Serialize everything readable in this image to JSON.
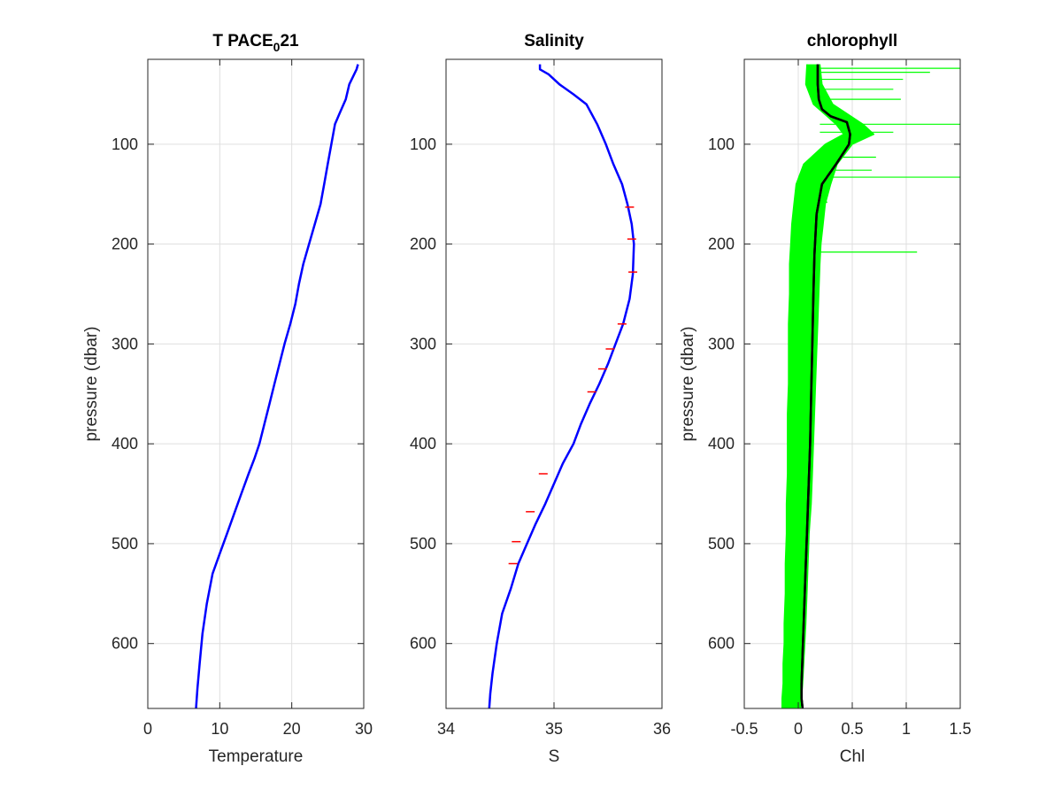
{
  "chart_data": [
    {
      "type": "line",
      "title": "T PACE",
      "title_subscript": "0",
      "title_suffix": "21",
      "xlabel": "Temperature",
      "ylabel": "pressure (dbar)",
      "xlim": [
        0,
        30
      ],
      "ylim": [
        15,
        665
      ],
      "y_reversed": true,
      "grid": true,
      "xticks": [
        0,
        10,
        20,
        30
      ],
      "yticks": [
        100,
        200,
        300,
        400,
        500,
        600
      ],
      "series": [
        {
          "color": "#0000ff",
          "x": [
            29.2,
            29.0,
            28.0,
            27.5,
            26.6,
            26.0,
            25.5,
            25.0,
            24.5,
            24.0,
            23.2,
            22.4,
            21.6,
            21.0,
            20.5,
            19.8,
            19.0,
            18.3,
            17.6,
            16.9,
            16.2,
            15.5,
            14.8,
            14.0,
            13.0,
            12.0,
            11.0,
            10.0,
            9.0,
            8.2,
            7.6,
            7.2,
            6.9,
            6.7
          ],
          "y": [
            20,
            25,
            40,
            55,
            70,
            80,
            100,
            120,
            140,
            160,
            180,
            200,
            220,
            240,
            260,
            280,
            300,
            320,
            340,
            360,
            380,
            400,
            415,
            430,
            450,
            470,
            490,
            510,
            530,
            560,
            590,
            620,
            645,
            665
          ]
        }
      ]
    },
    {
      "type": "line",
      "title": "Salinity",
      "xlabel": "S",
      "xlim": [
        34,
        36
      ],
      "ylim": [
        15,
        665
      ],
      "y_reversed": true,
      "grid": true,
      "xticks": [
        34,
        35,
        36
      ],
      "yticks": [
        100,
        200,
        300,
        400,
        500,
        600
      ],
      "series": [
        {
          "color": "#0000ff",
          "x": [
            34.87,
            34.87,
            34.95,
            35.05,
            35.18,
            35.3,
            35.4,
            35.48,
            35.55,
            35.63,
            35.68,
            35.72,
            35.74,
            35.73,
            35.7,
            35.64,
            35.57,
            35.5,
            35.42,
            35.33,
            35.25,
            35.18,
            35.08,
            35.0,
            34.92,
            34.83,
            34.75,
            34.67,
            34.6,
            34.52,
            34.47,
            34.43,
            34.41,
            34.4
          ],
          "y": [
            20,
            25,
            30,
            40,
            50,
            60,
            80,
            100,
            120,
            140,
            160,
            180,
            200,
            230,
            255,
            280,
            300,
            320,
            340,
            360,
            380,
            400,
            420,
            440,
            460,
            480,
            500,
            520,
            545,
            570,
            600,
            630,
            650,
            665
          ]
        },
        {
          "color": "#ff0000",
          "x": [
            35.7,
            35.72,
            35.73,
            35.63,
            35.52,
            35.45,
            35.35,
            34.9,
            34.78,
            34.65,
            34.62
          ],
          "y": [
            163,
            195,
            228,
            280,
            305,
            325,
            348,
            430,
            468,
            498,
            520
          ]
        }
      ]
    },
    {
      "type": "line",
      "title": "chlorophyll",
      "xlabel": "Chl",
      "ylabel": "pressure (dbar)",
      "xlim": [
        -0.5,
        1.5
      ],
      "ylim": [
        15,
        665
      ],
      "y_reversed": true,
      "grid": true,
      "xticks": [
        -0.5,
        0,
        0.5,
        1,
        1.5
      ],
      "xticklabels": [
        "-0.5",
        "0",
        "0.5",
        "1",
        "1.5"
      ],
      "yticks": [
        100,
        200,
        300,
        400,
        500,
        600
      ],
      "series": [
        {
          "color": "#00ff00",
          "x": [
            0.2,
            0.22,
            0.32,
            0.6,
            0.7,
            0.5,
            0.36,
            0.3,
            0.25,
            0.23,
            0.21,
            0.2,
            0.19,
            0.18,
            0.17,
            0.16,
            0.15,
            0.14,
            0.13,
            0.12,
            0.1,
            0.09,
            0.08,
            0.07,
            0.06,
            0.05,
            0.04,
            0.03,
            0.02
          ],
          "y": [
            20,
            40,
            60,
            80,
            90,
            100,
            120,
            140,
            160,
            180,
            200,
            220,
            250,
            280,
            310,
            340,
            370,
            400,
            430,
            460,
            490,
            520,
            550,
            580,
            600,
            620,
            640,
            655,
            665
          ]
        },
        {
          "color": "#00ff00",
          "x": [
            0.08,
            0.07,
            0.14,
            0.35,
            0.42,
            0.25,
            0.05,
            -0.02,
            -0.04,
            -0.06,
            -0.07,
            -0.08,
            -0.08,
            -0.09,
            -0.09,
            -0.09,
            -0.1,
            -0.1,
            -0.1,
            -0.11,
            -0.11,
            -0.12,
            -0.12,
            -0.13,
            -0.13,
            -0.14,
            -0.14,
            -0.15,
            -0.15
          ],
          "y": [
            20,
            40,
            60,
            80,
            90,
            100,
            120,
            140,
            160,
            180,
            200,
            220,
            250,
            280,
            310,
            340,
            370,
            400,
            430,
            460,
            490,
            520,
            550,
            580,
            600,
            620,
            640,
            655,
            665
          ]
        },
        {
          "color": "#000000",
          "x": [
            0.18,
            0.18,
            0.19,
            0.22,
            0.3,
            0.45,
            0.48,
            0.47,
            0.35,
            0.22,
            0.17,
            0.15,
            0.14,
            0.13,
            0.12,
            0.11,
            0.1,
            0.09,
            0.08,
            0.07,
            0.06,
            0.05,
            0.04,
            0.03,
            0.03,
            0.04
          ],
          "y": [
            20,
            40,
            55,
            65,
            72,
            78,
            90,
            100,
            120,
            140,
            170,
            210,
            250,
            300,
            350,
            400,
            430,
            460,
            490,
            520,
            550,
            580,
            610,
            640,
            655,
            665
          ]
        },
        {
          "color": "#00ff00",
          "spikes": [
            {
              "y": 24,
              "x": 1.5
            },
            {
              "y": 28,
              "x": 1.22
            },
            {
              "y": 35,
              "x": 0.97
            },
            {
              "y": 45,
              "x": 0.88
            },
            {
              "y": 55,
              "x": 0.95
            },
            {
              "y": 80,
              "x": 1.5
            },
            {
              "y": 88,
              "x": 0.88
            },
            {
              "y": 113,
              "x": 0.72
            },
            {
              "y": 126,
              "x": 0.68
            },
            {
              "y": 133,
              "x": 1.5
            },
            {
              "y": 158,
              "x": 0.27
            },
            {
              "y": 208,
              "x": 1.1
            }
          ]
        }
      ]
    }
  ]
}
